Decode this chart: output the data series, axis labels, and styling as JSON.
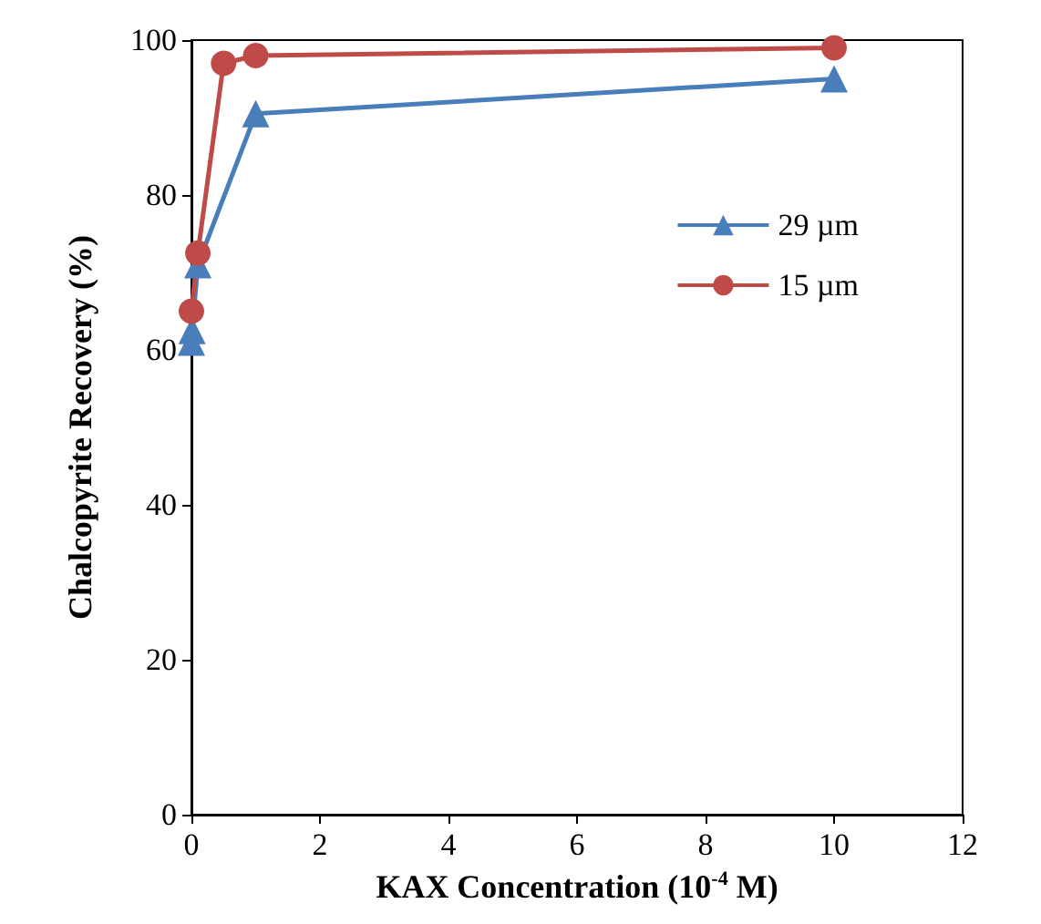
{
  "chart_data": {
    "type": "line",
    "xlabel": "KAX Concentration (10$^{-4}$ M)",
    "ylabel": "Chalcopyrite Recovery (%)",
    "series": [
      {
        "name": "29 µm",
        "color": "#4a7ebb",
        "marker": "triangle",
        "x": [
          0,
          0.01,
          0.1,
          1,
          10
        ],
        "values": [
          61,
          62.5,
          71,
          90.5,
          95
        ]
      },
      {
        "name": "15 µm",
        "color": "#be4b48",
        "marker": "circle",
        "x": [
          0,
          0.1,
          0.5,
          1,
          10
        ],
        "values": [
          65,
          72.5,
          97,
          98,
          99
        ]
      }
    ],
    "xlim": [
      0,
      12
    ],
    "xticks": [
      0,
      2,
      4,
      6,
      8,
      10,
      12
    ],
    "ylim": [
      0,
      100
    ],
    "yticks": [
      0,
      20,
      40,
      60,
      80,
      100
    ],
    "grid": false,
    "legend": "right"
  }
}
